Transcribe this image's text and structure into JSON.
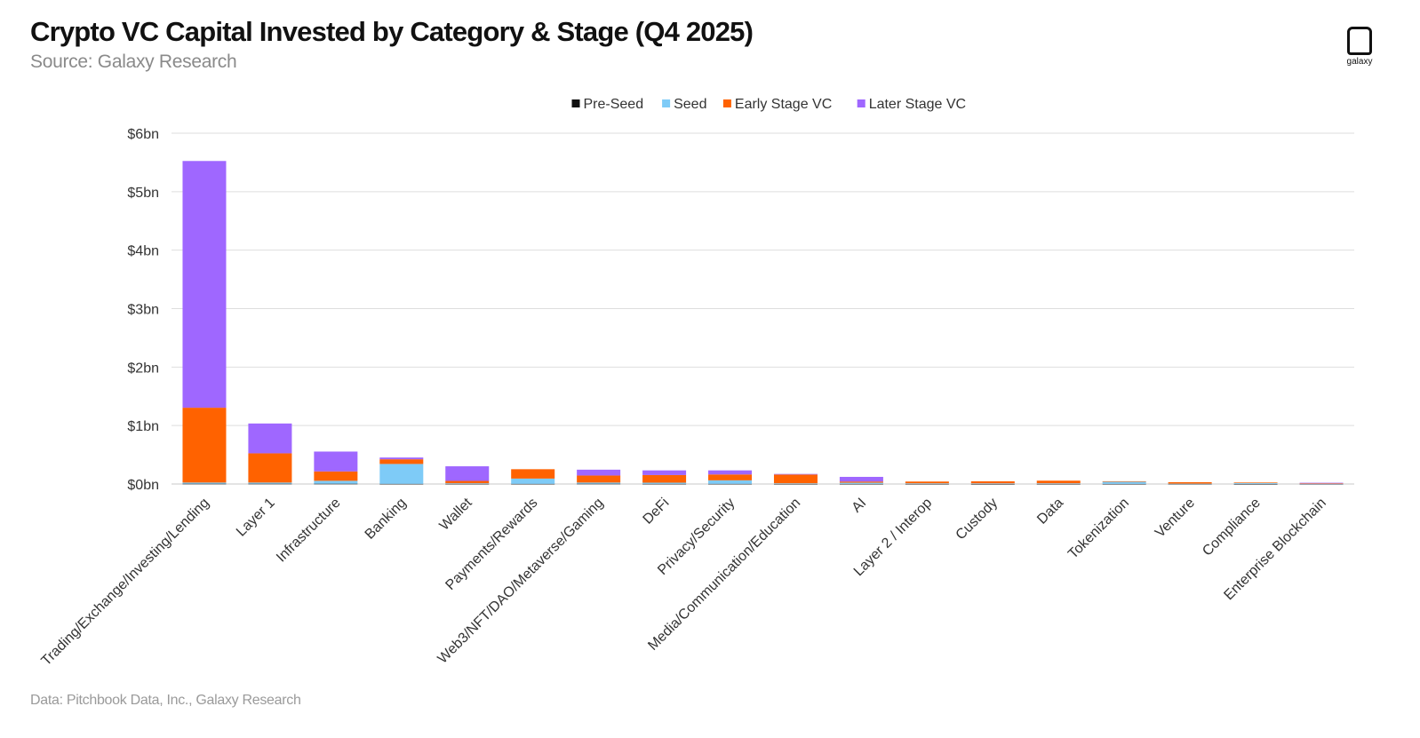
{
  "header": {
    "title": "Crypto VC Capital Invested by Category & Stage (Q4 2025)",
    "subtitle": "Source: Galaxy Research",
    "footer": "Data: Pitchbook Data, Inc., Galaxy Research",
    "logo_word": "galaxy"
  },
  "chart_data": {
    "type": "bar",
    "stacked": true,
    "legend_position": "top-center",
    "grid": true,
    "ylim": [
      0,
      6
    ],
    "yticks": [
      0,
      1,
      2,
      3,
      4,
      5,
      6
    ],
    "ytick_labels": [
      "$0bn",
      "$1bn",
      "$2bn",
      "$3bn",
      "$4bn",
      "$5bn",
      "$6bn"
    ],
    "categories": [
      "Trading/Exchange/Investing/Lending",
      "Layer 1",
      "Infrastructure",
      "Banking",
      "Wallet",
      "Payments/Rewards",
      "Web3/NFT/DAO/Metaverse/Gaming",
      "DeFi",
      "Privacy/Security",
      "Media/Communication/Education",
      "AI",
      "Layer 2 / Interop",
      "Custody",
      "Data",
      "Tokenization",
      "Venture",
      "Compliance",
      "Enterprise Blockchain"
    ],
    "series": [
      {
        "name": "Pre-Seed",
        "color": "#111111",
        "values": [
          0.005,
          0.005,
          0.005,
          0.003,
          0.003,
          0.003,
          0.005,
          0.003,
          0.003,
          0.002,
          0.002,
          0.002,
          0.001,
          0.002,
          0.002,
          0.001,
          0.001,
          0.001
        ]
      },
      {
        "name": "Seed",
        "color": "#7ecbf7",
        "values": [
          0.02,
          0.02,
          0.05,
          0.34,
          0.01,
          0.09,
          0.02,
          0.02,
          0.06,
          0.01,
          0.02,
          0.01,
          0.01,
          0.01,
          0.04,
          0.005,
          0.015,
          0.005
        ]
      },
      {
        "name": "Early Stage VC",
        "color": "#ff6200",
        "values": [
          1.28,
          0.5,
          0.16,
          0.08,
          0.04,
          0.16,
          0.12,
          0.13,
          0.1,
          0.15,
          0.02,
          0.03,
          0.035,
          0.045,
          0.005,
          0.025,
          0.01,
          0.005
        ]
      },
      {
        "name": "Later Stage VC",
        "color": "#9f67ff",
        "values": [
          4.22,
          0.51,
          0.34,
          0.03,
          0.25,
          0.0,
          0.1,
          0.08,
          0.07,
          0.01,
          0.08,
          0.0,
          0.0,
          0.0,
          0.0,
          0.0,
          0.0,
          0.01
        ]
      }
    ]
  }
}
